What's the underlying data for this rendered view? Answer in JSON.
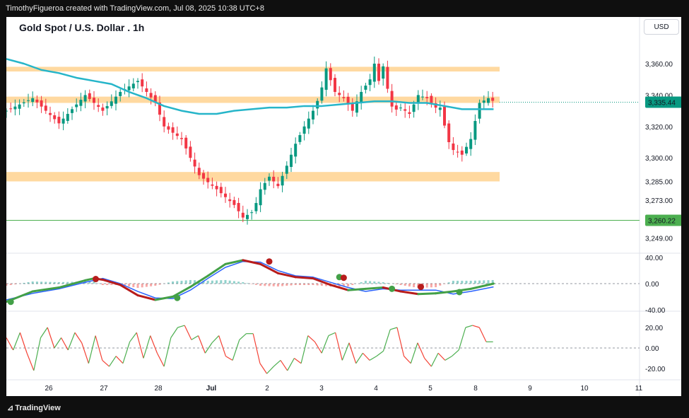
{
  "header": {
    "attribution": "TimothyFigueroa created with TradingView.com, Jul 08, 2025 10:38 UTC+8"
  },
  "chart_title": "Gold Spot / U.S. Dollar . 1h",
  "currency": "USD",
  "footer": {
    "brand": "TradingView"
  },
  "colors": {
    "up": "#089981",
    "down": "#f23645",
    "ema": "#26b5c9",
    "zone": "#ffcc80",
    "support_line": "#4caf50",
    "macd": "#2962ff",
    "signal_up": "#43a047",
    "signal_down": "#b71c1c",
    "rsi_up": "#4caf50",
    "rsi_down": "#f44336"
  },
  "chart_data": [
    {
      "type": "candlestick",
      "title": "Gold Spot / U.S. Dollar . 1h",
      "x_ticks": [
        "26",
        "27",
        "28",
        "Jul",
        "2",
        "3",
        "4",
        "5",
        "8",
        "9",
        "10",
        "11"
      ],
      "y_ticks": [
        "3,360.00",
        "3,340.00",
        "3,320.00",
        "3,300.00",
        "3,285.00",
        "3,273.00",
        "3,249.00"
      ],
      "y_tick_values": [
        3360,
        3340,
        3320,
        3300,
        3285,
        3273,
        3249
      ],
      "last_price": "3,335.44",
      "last_price_value": 3335.44,
      "marked_level": "3,260.22",
      "marked_level_value": 3260.22,
      "resistance_zones": [
        [
          3355,
          3358
        ],
        [
          3335,
          3339
        ],
        [
          3285,
          3291
        ]
      ],
      "close_path": [
        [
          0,
          3330
        ],
        [
          3,
          3338
        ],
        [
          6,
          3322
        ],
        [
          9,
          3340
        ],
        [
          11,
          3330
        ],
        [
          13,
          3342
        ],
        [
          15,
          3349
        ],
        [
          17,
          3335
        ],
        [
          18,
          3320
        ],
        [
          20,
          3312
        ],
        [
          21,
          3300
        ],
        [
          22,
          3289
        ],
        [
          24,
          3280
        ],
        [
          26,
          3270
        ],
        [
          27,
          3262
        ],
        [
          28.2,
          3266
        ],
        [
          29,
          3280
        ],
        [
          30,
          3288
        ],
        [
          31,
          3282
        ],
        [
          32,
          3295
        ],
        [
          33,
          3309
        ],
        [
          34,
          3320
        ],
        [
          35,
          3330
        ],
        [
          35.8,
          3340
        ],
        [
          36.5,
          3357
        ],
        [
          37.5,
          3342
        ],
        [
          38.5,
          3338
        ],
        [
          39.5,
          3330
        ],
        [
          40.5,
          3342
        ],
        [
          41.5,
          3350
        ],
        [
          42,
          3360
        ],
        [
          42.5,
          3349
        ],
        [
          43.2,
          3362
        ],
        [
          43.6,
          3338
        ],
        [
          44.2,
          3330
        ],
        [
          45,
          3332
        ],
        [
          46,
          3328
        ],
        [
          47,
          3340
        ],
        [
          48,
          3338
        ],
        [
          49,
          3332
        ],
        [
          49.6,
          3332
        ],
        [
          50.3,
          3312
        ],
        [
          51,
          3305
        ],
        [
          52,
          3302
        ],
        [
          53,
          3312
        ],
        [
          54,
          3335
        ],
        [
          55,
          3338
        ],
        [
          55.6,
          3336
        ]
      ],
      "ema_path": [
        [
          0,
          3363
        ],
        [
          2,
          3360
        ],
        [
          4,
          3356
        ],
        [
          6,
          3354
        ],
        [
          8,
          3351
        ],
        [
          10,
          3349
        ],
        [
          12,
          3347
        ],
        [
          14,
          3342
        ],
        [
          16,
          3338
        ],
        [
          18,
          3333
        ],
        [
          20,
          3330
        ],
        [
          22,
          3328
        ],
        [
          24,
          3328
        ],
        [
          26,
          3330
        ],
        [
          28,
          3331
        ],
        [
          30,
          3332
        ],
        [
          32,
          3332
        ],
        [
          34,
          3333
        ],
        [
          36,
          3333
        ],
        [
          38,
          3334
        ],
        [
          40,
          3335
        ],
        [
          42,
          3336
        ],
        [
          44,
          3336
        ],
        [
          46,
          3335
        ],
        [
          48,
          3335
        ],
        [
          50,
          3333
        ],
        [
          52,
          3331
        ],
        [
          54,
          3331
        ],
        [
          55.6,
          3331
        ]
      ]
    },
    {
      "type": "line",
      "title": "",
      "y_ticks": [
        "40.00",
        "0.00",
        "-40.00"
      ],
      "y_tick_values": [
        40,
        0,
        -40
      ],
      "ylim": [
        -40,
        40
      ],
      "series": [
        {
          "values": [
            [
              0,
              -25
            ],
            [
              3,
              -15
            ],
            [
              6,
              -8
            ],
            [
              9,
              2
            ],
            [
              10,
              5
            ],
            [
              11,
              8
            ],
            [
              13,
              0
            ],
            [
              15,
              -12
            ],
            [
              17,
              -22
            ],
            [
              19,
              -23
            ],
            [
              21,
              -10
            ],
            [
              23,
              8
            ],
            [
              25,
              25
            ],
            [
              27,
              34
            ],
            [
              29,
              33
            ],
            [
              31,
              20
            ],
            [
              33,
              12
            ],
            [
              35,
              10
            ],
            [
              37,
              2
            ],
            [
              39,
              -6
            ],
            [
              41,
              -12
            ],
            [
              43,
              -8
            ],
            [
              45,
              -10
            ],
            [
              47,
              -10
            ],
            [
              49,
              -10
            ],
            [
              51,
              -16
            ],
            [
              53,
              -12
            ],
            [
              55.6,
              -5
            ]
          ]
        },
        {
          "values": [
            [
              0,
              -28
            ],
            [
              3,
              -12
            ],
            [
              6,
              -6
            ],
            [
              9,
              5
            ],
            [
              10,
              8
            ],
            [
              11,
              6
            ],
            [
              13,
              -2
            ],
            [
              15,
              -18
            ],
            [
              17,
              -25
            ],
            [
              19,
              -20
            ],
            [
              21,
              -5
            ],
            [
              23,
              12
            ],
            [
              25,
              30
            ],
            [
              27,
              36
            ],
            [
              29,
              30
            ],
            [
              31,
              16
            ],
            [
              33,
              10
            ],
            [
              35,
              8
            ],
            [
              37,
              -2
            ],
            [
              39,
              -10
            ],
            [
              41,
              -8
            ],
            [
              43,
              -6
            ],
            [
              45,
              -12
            ],
            [
              47,
              -16
            ],
            [
              49,
              -15
            ],
            [
              51,
              -12
            ],
            [
              53,
              -8
            ],
            [
              55.6,
              0
            ]
          ]
        }
      ],
      "markers": [
        {
          "x": 0.5,
          "y": -28,
          "dir": "up"
        },
        {
          "x": 10.2,
          "y": 7,
          "dir": "down"
        },
        {
          "x": 19.5,
          "y": -22,
          "dir": "up"
        },
        {
          "x": 30,
          "y": 34,
          "dir": "down"
        },
        {
          "x": 38,
          "y": 10,
          "dir": "up"
        },
        {
          "x": 38.5,
          "y": 9,
          "dir": "down"
        },
        {
          "x": 44,
          "y": -8,
          "dir": "up"
        },
        {
          "x": 47.3,
          "y": -5,
          "dir": "down"
        },
        {
          "x": 51.7,
          "y": -13,
          "dir": "up"
        }
      ]
    },
    {
      "type": "line",
      "title": "",
      "y_ticks": [
        "20.00",
        "0.00",
        "-20.00"
      ],
      "y_tick_values": [
        20,
        0,
        -20
      ],
      "ylim": [
        -25,
        25
      ],
      "values": [
        [
          0,
          10
        ],
        [
          1,
          -2
        ],
        [
          2,
          15
        ],
        [
          3,
          -5
        ],
        [
          4,
          -22
        ],
        [
          5,
          10
        ],
        [
          6,
          20
        ],
        [
          7,
          0
        ],
        [
          8,
          10
        ],
        [
          9,
          -2
        ],
        [
          10,
          15
        ],
        [
          11,
          5
        ],
        [
          12,
          -15
        ],
        [
          13,
          12
        ],
        [
          14,
          -12
        ],
        [
          15,
          -18
        ],
        [
          16,
          -8
        ],
        [
          17,
          -15
        ],
        [
          18,
          6
        ],
        [
          19,
          15
        ],
        [
          20,
          -10
        ],
        [
          21,
          12
        ],
        [
          22,
          -5
        ],
        [
          23,
          -18
        ],
        [
          24,
          10
        ],
        [
          25,
          20
        ],
        [
          26,
          22
        ],
        [
          27,
          8
        ],
        [
          28,
          12
        ],
        [
          29,
          -5
        ],
        [
          30,
          5
        ],
        [
          31,
          12
        ],
        [
          32,
          -8
        ],
        [
          33,
          -12
        ],
        [
          34,
          8
        ],
        [
          35,
          14
        ],
        [
          36,
          14
        ],
        [
          37,
          -15
        ],
        [
          38,
          -25
        ],
        [
          39,
          -18
        ],
        [
          40,
          -12
        ],
        [
          41,
          -22
        ],
        [
          42,
          -10
        ],
        [
          43,
          -15
        ],
        [
          44,
          12
        ],
        [
          45,
          6
        ],
        [
          46,
          -5
        ],
        [
          47,
          12
        ],
        [
          48,
          15
        ],
        [
          49,
          -12
        ],
        [
          50,
          5
        ],
        [
          51,
          -15
        ],
        [
          52,
          -5
        ],
        [
          53,
          -12
        ],
        [
          54,
          -8
        ],
        [
          55,
          -3
        ],
        [
          56,
          18
        ],
        [
          57,
          20
        ],
        [
          58,
          -8
        ],
        [
          59,
          -15
        ],
        [
          60,
          5
        ],
        [
          61,
          -10
        ],
        [
          62,
          -18
        ],
        [
          63,
          -5
        ],
        [
          64,
          -12
        ],
        [
          65,
          -8
        ],
        [
          66,
          -2
        ],
        [
          67,
          20
        ],
        [
          68,
          22
        ],
        [
          69,
          20
        ],
        [
          70,
          6
        ],
        [
          71,
          6
        ]
      ]
    }
  ]
}
